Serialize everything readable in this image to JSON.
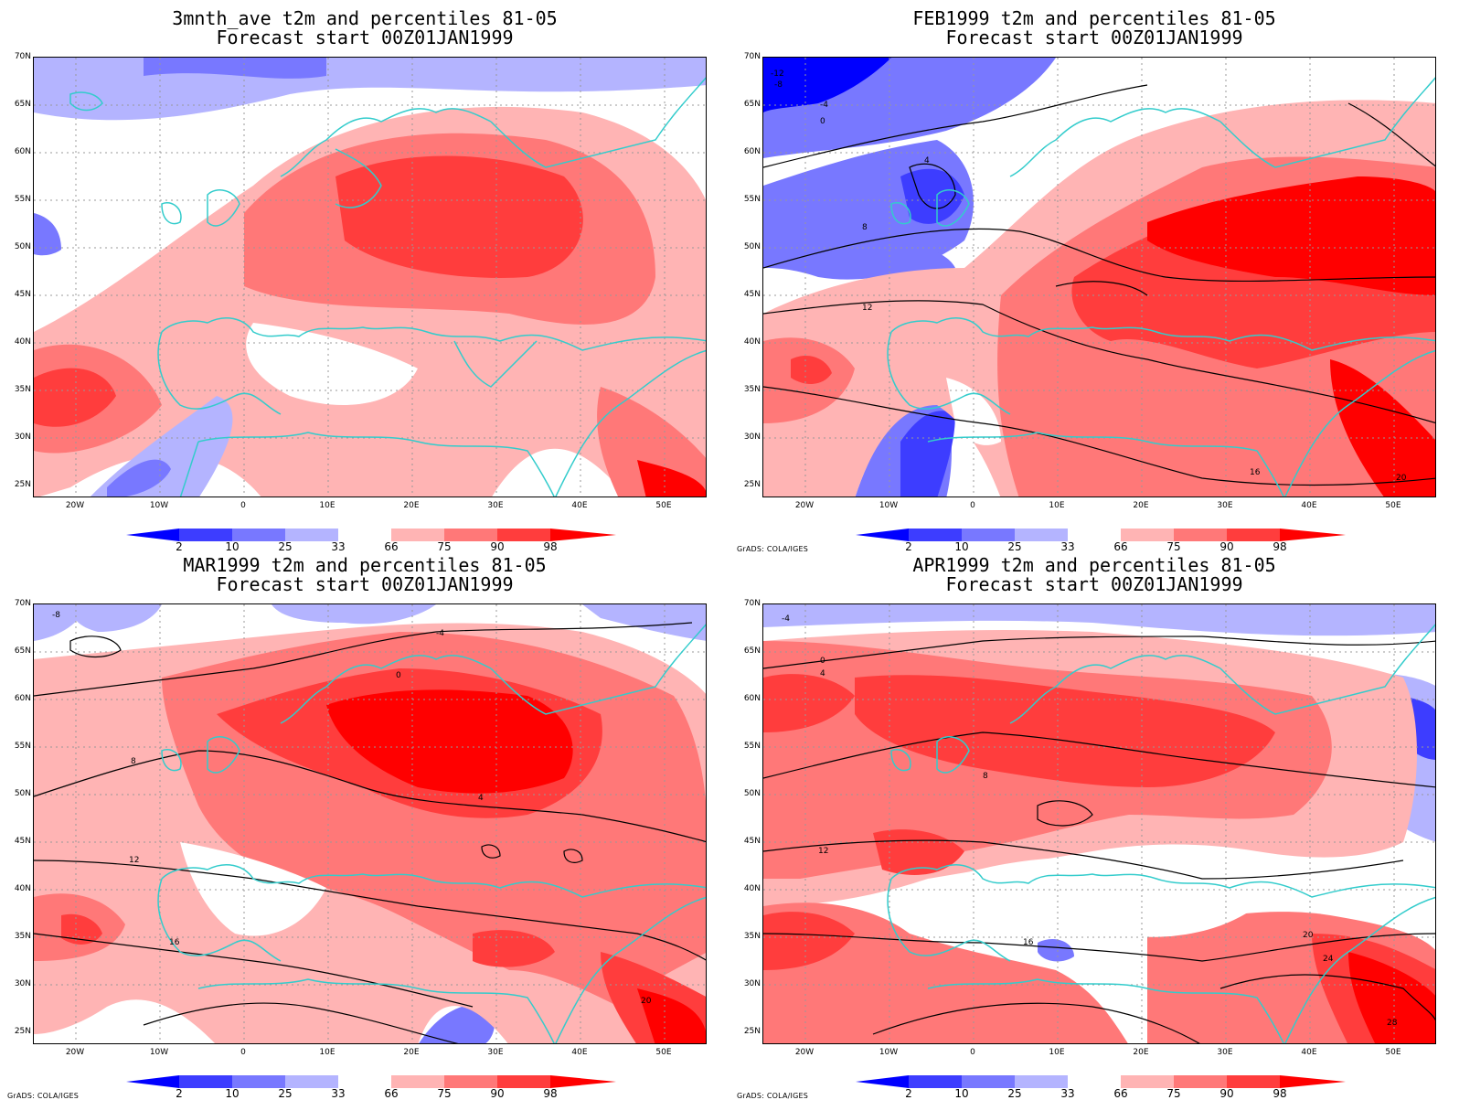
{
  "panels": [
    {
      "title_line1": "3mnth_ave t2m and percentiles 81-05",
      "title_line2": "Forecast start 00Z01JAN1999",
      "credit": ""
    },
    {
      "title_line1": "FEB1999 t2m and percentiles 81-05",
      "title_line2": "Forecast start 00Z01JAN1999",
      "credit": "GrADS: COLA/IGES"
    },
    {
      "title_line1": "MAR1999 t2m and percentiles 81-05",
      "title_line2": "Forecast start 00Z01JAN1999",
      "credit": "GrADS: COLA/IGES"
    },
    {
      "title_line1": "APR1999 t2m and percentiles 81-05",
      "title_line2": "Forecast start 00Z01JAN1999",
      "credit": "GrADS: COLA/IGES"
    }
  ],
  "lat_labels": [
    "70N",
    "65N",
    "60N",
    "55N",
    "50N",
    "45N",
    "40N",
    "35N",
    "30N",
    "25N"
  ],
  "lon_labels": [
    "20W",
    "10W",
    "0",
    "10E",
    "20E",
    "30E",
    "40E",
    "50E"
  ],
  "colorbar": {
    "labels": [
      "2",
      "10",
      "25",
      "33",
      "66",
      "75",
      "90",
      "98"
    ],
    "colors": [
      "#0000ff",
      "#3d3dff",
      "#7878ff",
      "#b4b4ff",
      "#ffffff",
      "#ffb4b4",
      "#ff7878",
      "#ff3d3d",
      "#ff0000"
    ]
  },
  "colors": {
    "coastline": "#33cccc",
    "contour": "#000000",
    "gridline": "#999999"
  },
  "contour_labels": {
    "panel2": [
      "-12",
      "-8",
      "-4",
      "0",
      "4",
      "8",
      "12",
      "16",
      "20"
    ],
    "panel3": [
      "-8",
      "-4",
      "0",
      "4",
      "8",
      "12",
      "16",
      "20"
    ],
    "panel4": [
      "-4",
      "0",
      "4",
      "8",
      "12",
      "16",
      "20",
      "24",
      "28"
    ]
  }
}
